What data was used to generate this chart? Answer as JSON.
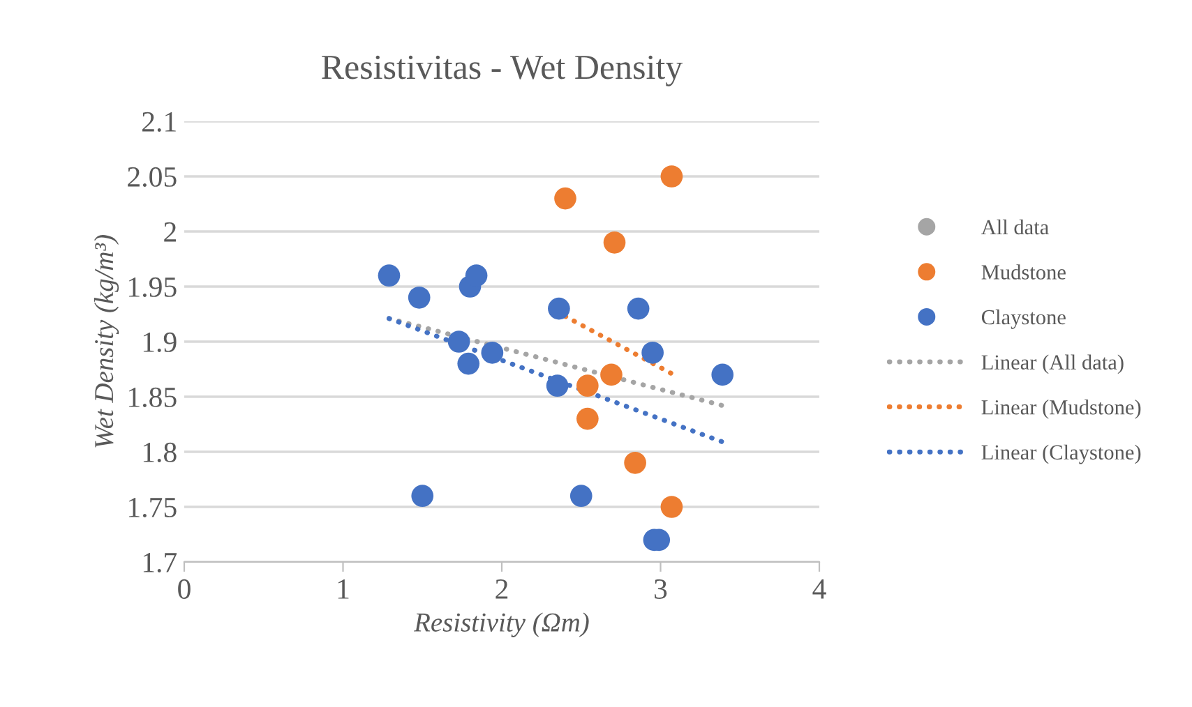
{
  "chart_data": {
    "type": "scatter",
    "title": "Resistivitas - Wet Density",
    "xlabel": "Resistivity (Ωm)",
    "ylabel": "Wet Density (kg/m³)",
    "xlim": [
      0,
      4
    ],
    "xticks": [
      0,
      1,
      2,
      3,
      4
    ],
    "ylim": [
      1.7,
      2.1
    ],
    "yticks": [
      {
        "value": 1.7,
        "label": "1.7"
      },
      {
        "value": 1.75,
        "label": "1.75"
      },
      {
        "value": 1.8,
        "label": "1.8"
      },
      {
        "value": 1.85,
        "label": "1.85"
      },
      {
        "value": 1.9,
        "label": "1.9"
      },
      {
        "value": 1.95,
        "label": "1.95"
      },
      {
        "value": 2.0,
        "label": "2"
      },
      {
        "value": 2.05,
        "label": "2.05"
      },
      {
        "value": 2.1,
        "label": "2.1"
      }
    ],
    "grid": "y",
    "legend": "right",
    "marker": "circle",
    "series": [
      {
        "name": "All data",
        "color": "#a5a5a5",
        "marker": "circle"
      },
      {
        "name": "Mudstone",
        "color": "#ed7d31",
        "x": [
          2.4,
          3.07,
          2.71,
          2.69,
          2.54,
          2.54,
          2.84,
          3.07
        ],
        "values": [
          2.03,
          2.05,
          1.99,
          1.87,
          1.86,
          1.83,
          1.79,
          1.75
        ]
      },
      {
        "name": "Claystone",
        "color": "#4472c4",
        "x": [
          1.29,
          1.48,
          1.8,
          1.84,
          1.73,
          1.79,
          1.94,
          2.36,
          2.35,
          2.86,
          2.95,
          3.39,
          1.5,
          2.5,
          2.96,
          2.99
        ],
        "values": [
          1.96,
          1.94,
          1.95,
          1.96,
          1.9,
          1.88,
          1.89,
          1.93,
          1.86,
          1.93,
          1.89,
          1.87,
          1.76,
          1.76,
          1.72,
          1.72
        ]
      },
      {
        "name": "Linear (All data)",
        "type": "line",
        "line_style": "dotted",
        "marker": "none",
        "color": "#a5a5a5",
        "x": [
          1.29,
          3.39
        ],
        "values": [
          1.921,
          1.842
        ]
      },
      {
        "name": "Linear (Mudstone)",
        "type": "line",
        "line_style": "dotted",
        "marker": "none",
        "color": "#ed7d31",
        "x": [
          2.4,
          3.07
        ],
        "values": [
          1.923,
          1.871
        ]
      },
      {
        "name": "Linear (Claystone)",
        "type": "line",
        "line_style": "dotted",
        "marker": "none",
        "color": "#4472c4",
        "x": [
          1.29,
          3.39
        ],
        "values": [
          1.921,
          1.809
        ]
      }
    ]
  }
}
